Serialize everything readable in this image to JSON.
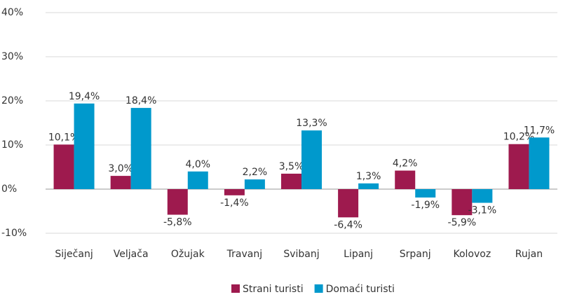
{
  "chart_data": {
    "type": "bar",
    "categories": [
      "Siječanj",
      "Veljača",
      "Ožujak",
      "Travanj",
      "Svibanj",
      "Lipanj",
      "Srpanj",
      "Kolovoz",
      "Rujan"
    ],
    "series": [
      {
        "name": "Strani turisti",
        "color": "#9e1a4e",
        "values": [
          10.1,
          3.0,
          -5.8,
          -1.4,
          3.5,
          -6.4,
          4.2,
          -5.9,
          10.2
        ],
        "value_labels": [
          "10,1%",
          "3,0%",
          "-5,8%",
          "-1,4%",
          "3,5%",
          "-6,4%",
          "4,2%",
          "-5,9%",
          "10,2%"
        ]
      },
      {
        "name": "Domaći turisti",
        "color": "#0099cc",
        "values": [
          19.4,
          18.4,
          4.0,
          2.2,
          13.3,
          1.3,
          -1.9,
          -3.1,
          11.7
        ],
        "value_labels": [
          "19,4%",
          "18,4%",
          "4,0%",
          "2,2%",
          "13,3%",
          "1,3%",
          "-1,9%",
          "-3,1%",
          "11,7%"
        ]
      }
    ],
    "ylim": [
      -10,
      40
    ],
    "yticks": [
      {
        "value": -10,
        "label": "-10%"
      },
      {
        "value": 0,
        "label": "0%"
      },
      {
        "value": 10,
        "label": "10%"
      },
      {
        "value": 20,
        "label": "20%"
      },
      {
        "value": 30,
        "label": "30%"
      },
      {
        "value": 40,
        "label": "40%"
      }
    ],
    "grid": true,
    "legend": "bottom"
  }
}
